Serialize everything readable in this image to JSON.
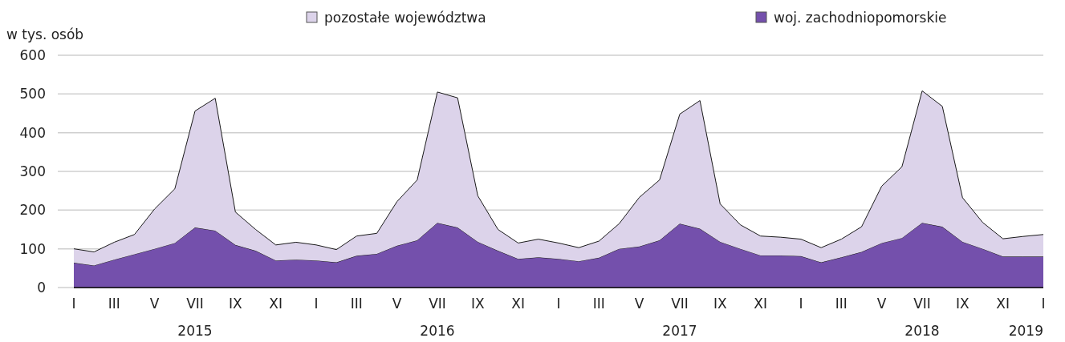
{
  "chart_data": {
    "type": "area",
    "stacked": true,
    "ylabel": "w tys. osób",
    "categories": [
      "I",
      null,
      "III",
      null,
      "V",
      null,
      "VII",
      null,
      "IX",
      null,
      "XI",
      null,
      "I",
      null,
      "III",
      null,
      "V",
      null,
      "VII",
      null,
      "IX",
      null,
      "XI",
      null,
      "I",
      null,
      "III",
      null,
      "V",
      null,
      "VII",
      null,
      "IX",
      null,
      "XI",
      null,
      "I",
      null,
      "III",
      null,
      "V",
      null,
      "VII",
      null,
      "IX",
      null,
      "XI",
      null,
      "I"
    ],
    "series": [
      {
        "name": "woj. zachodniopomorskie",
        "color": "#7450ac",
        "values": [
          64,
          57,
          72,
          86,
          100,
          115,
          155,
          147,
          110,
          95,
          70,
          72,
          70,
          65,
          82,
          87,
          108,
          122,
          167,
          155,
          118,
          95,
          74,
          78,
          74,
          68,
          77,
          100,
          106,
          122,
          165,
          152,
          118,
          100,
          83,
          83,
          81,
          65,
          78,
          92,
          115,
          128,
          167,
          157,
          118,
          100,
          80,
          80,
          80
        ]
      },
      {
        "name": "pozostałe województwa",
        "color": "#dcd3ea",
        "values": [
          36,
          35,
          45,
          51,
          103,
          140,
          301,
          342,
          85,
          55,
          40,
          45,
          40,
          33,
          51,
          53,
          114,
          156,
          338,
          335,
          119,
          55,
          41,
          47,
          41,
          35,
          43,
          65,
          127,
          156,
          283,
          331,
          98,
          62,
          50,
          47,
          44,
          38,
          47,
          65,
          147,
          184,
          341,
          311,
          114,
          68,
          46,
          52,
          57
        ]
      }
    ],
    "ylim": [
      0,
      600
    ],
    "yticks": [
      0,
      100,
      200,
      300,
      400,
      500,
      600
    ],
    "grid": "y",
    "legend": "top",
    "annotations": [
      "2015",
      "2016",
      "2017",
      "2018",
      "2019"
    ]
  }
}
